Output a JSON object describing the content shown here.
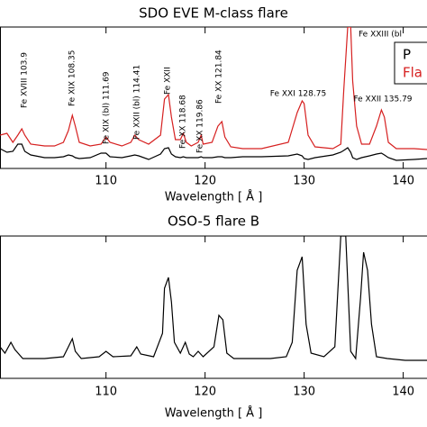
{
  "chart_data": [
    {
      "type": "line",
      "title": "SDO EVE M-class flare",
      "xlabel": "Wavelength [ Å ]",
      "x": [
        99.3,
        100.0,
        100.6,
        101.1,
        101.5,
        101.8,
        102.4,
        103.8,
        104.8,
        105.7,
        106.2,
        106.6,
        106.9,
        107.3,
        108.4,
        109.5,
        110.0,
        110.4,
        111.6,
        112.5,
        112.9,
        113.3,
        114.3,
        115.5,
        115.9,
        116.3,
        116.6,
        117.0,
        117.5,
        117.8,
        118.1,
        118.6,
        119.3,
        119.6,
        119.8,
        120.7,
        121.3,
        121.7,
        122.0,
        122.6,
        123.8,
        125.7,
        128.4,
        129.3,
        129.8,
        130.0,
        130.4,
        131.1,
        132.9,
        133.7,
        134.0,
        134.4,
        134.7,
        134.9,
        135.3,
        135.8,
        136.6,
        137.3,
        137.8,
        138.1,
        138.5,
        139.3,
        141.1,
        142.4
      ],
      "series": [
        {
          "name": "P",
          "color": "#000000",
          "values": [
            22,
            18,
            19,
            27,
            27,
            19,
            15,
            12,
            12,
            13,
            15,
            14,
            12,
            11,
            12,
            17,
            17,
            13,
            12,
            14,
            15,
            14,
            10,
            16,
            22,
            23,
            16,
            13,
            12,
            13,
            12,
            12,
            12,
            13,
            12,
            12,
            13,
            13,
            12,
            12,
            13,
            13,
            14,
            16,
            14,
            11,
            10,
            12,
            15,
            18,
            20,
            23,
            18,
            12,
            10,
            12,
            14,
            16,
            17,
            15,
            12,
            9,
            10,
            11
          ]
        },
        {
          "name": "Fla",
          "color": "#d62020",
          "values": [
            37,
            39,
            29,
            37,
            44,
            37,
            27,
            25,
            25,
            29,
            42,
            59,
            47,
            29,
            25,
            27,
            35,
            29,
            25,
            29,
            37,
            32,
            27,
            37,
            77,
            82,
            57,
            32,
            32,
            39,
            29,
            25,
            29,
            37,
            27,
            29,
            47,
            52,
            35,
            24,
            22,
            22,
            29,
            62,
            75,
            72,
            37,
            24,
            22,
            27,
            87,
            157,
            157,
            97,
            47,
            27,
            27,
            47,
            65,
            57,
            29,
            22,
            22,
            21
          ]
        }
      ],
      "annotations": [
        "Fe XVIII 103.9",
        "Fe XIX 108.35",
        "Fe XIX (bl) 111.69",
        "Fe XXII (bl) 114.41",
        "Fe XXII",
        "Fe XX 118.68",
        "Fe XX 119.86",
        "Fe XX 121.84",
        "Fe XXI 128.75",
        "Fe XXII 135.79",
        "Fe XXIII (bl"
      ],
      "xlim": [
        99.3,
        142.4
      ],
      "ylim": [
        0,
        157
      ],
      "xticks": [
        110,
        120,
        130,
        140
      ]
    },
    {
      "type": "line",
      "title": "OSO-5 flare B",
      "xlabel": "Wavelength [ Å ]",
      "x": [
        99.3,
        99.8,
        100.4,
        100.8,
        101.6,
        103.8,
        105.7,
        106.2,
        106.6,
        106.9,
        107.5,
        109.3,
        110.0,
        110.7,
        112.5,
        113.1,
        113.5,
        114.8,
        115.7,
        115.9,
        116.3,
        116.6,
        116.9,
        117.5,
        118.0,
        118.4,
        118.8,
        119.3,
        119.8,
        120.9,
        121.4,
        121.8,
        122.2,
        122.9,
        126.6,
        128.2,
        128.8,
        129.3,
        129.8,
        130.2,
        130.7,
        132.0,
        133.1,
        133.7,
        134.2,
        134.7,
        135.2,
        135.7,
        136.0,
        136.4,
        136.8,
        137.3,
        138.4,
        140.2,
        142.4
      ],
      "series": [
        {
          "name": null,
          "color": "#000000",
          "values": [
            35,
            28,
            40,
            32,
            22,
            22,
            24,
            35,
            44,
            30,
            22,
            24,
            30,
            24,
            25,
            35,
            27,
            24,
            50,
            100,
            112,
            85,
            40,
            28,
            40,
            27,
            24,
            30,
            24,
            35,
            70,
            65,
            28,
            22,
            22,
            24,
            40,
            120,
            135,
            60,
            28,
            24,
            35,
            158,
            158,
            30,
            22,
            90,
            140,
            120,
            60,
            24,
            22,
            20,
            20
          ]
        }
      ],
      "xlim": [
        99.3,
        142.4
      ],
      "ylim": [
        0,
        158
      ],
      "xticks": [
        110,
        120,
        130,
        140
      ]
    }
  ]
}
